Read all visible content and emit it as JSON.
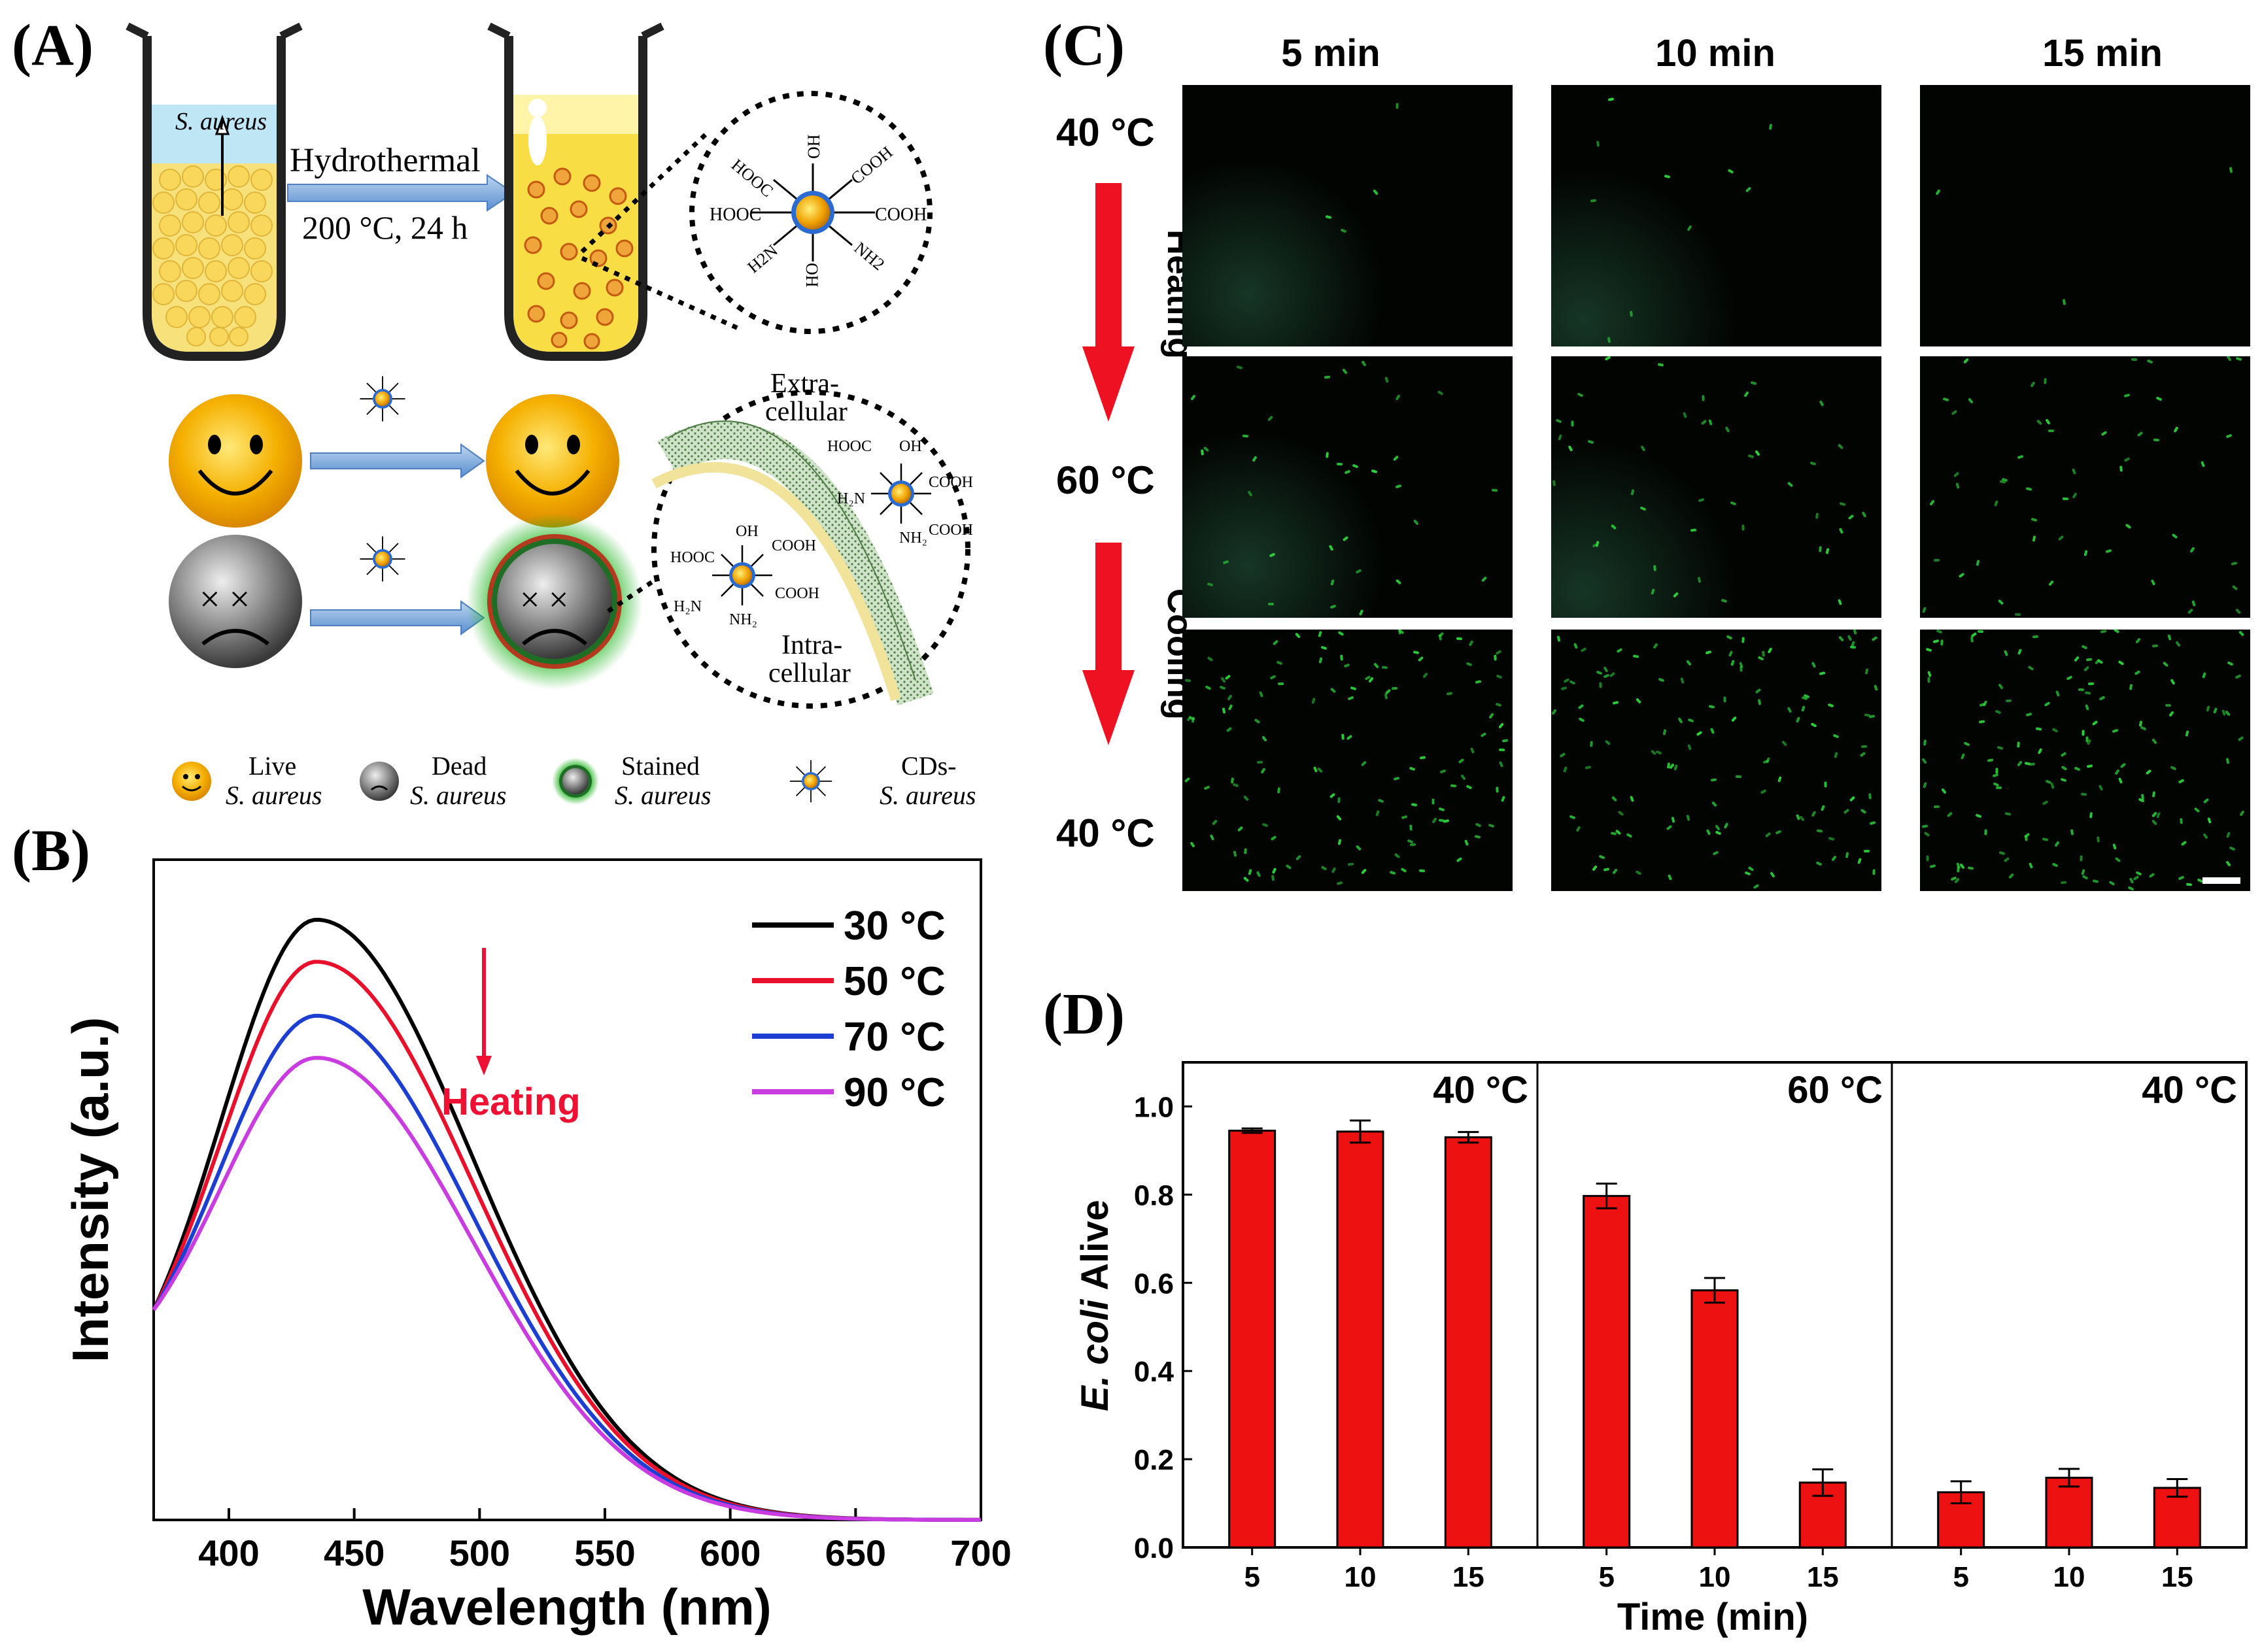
{
  "panelA": {
    "label": "(A)",
    "bacteria_label": "S. aureus",
    "process_line1": "Hydrothermal",
    "process_line2": "200 °C, 24 h",
    "carboxyl": "COOH",
    "carboxyl_left": "HOOC",
    "hydroxyl": "OH",
    "amine": "H2N",
    "amine_right": "NH2",
    "extracellular": "Extra-",
    "extracellular2": "cellular",
    "intracellular": "Intra-",
    "intracellular2": "cellular",
    "legend": [
      {
        "line1": "Live",
        "line2": "S. aureus"
      },
      {
        "line1": "Dead",
        "line2": "S. aureus"
      },
      {
        "line1": "Stained",
        "line2": "S. aureus"
      },
      {
        "line1": "CDs-",
        "line2": "S. aureus"
      }
    ]
  },
  "panelB": {
    "label": "(B)",
    "heating_label": "Heating",
    "colors": {
      "30": "#000000",
      "50": "#e8102a",
      "70": "#1c3fd1",
      "90": "#c83ce0"
    },
    "chart_data": {
      "type": "line",
      "title": "",
      "xlabel": "Wavelength (nm)",
      "ylabel": "Intensity (a.u.)",
      "xlim": [
        370,
        700
      ],
      "ylim": [
        0,
        1.1
      ],
      "x_ticks": [
        400,
        450,
        500,
        550,
        600,
        650,
        700
      ],
      "peak_wavelength": 435,
      "series": [
        {
          "name": "30 °C",
          "peak": 1.0
        },
        {
          "name": "50 °C",
          "peak": 0.93
        },
        {
          "name": "70 °C",
          "peak": 0.84
        },
        {
          "name": "90 °C",
          "peak": 0.77
        }
      ]
    }
  },
  "panelC": {
    "label": "(C)",
    "columns": [
      "5 min",
      "10 min",
      "15 min"
    ],
    "rows": [
      "40 °C",
      "60 °C",
      "40 °C"
    ],
    "heating": "Heating",
    "cooling": "Cooling",
    "density": [
      [
        4,
        10,
        3
      ],
      [
        35,
        45,
        55
      ],
      [
        130,
        130,
        160
      ]
    ]
  },
  "panelD": {
    "label": "(D)",
    "chart_data": {
      "type": "bar",
      "title": "",
      "xlabel": "Time (min)",
      "ylabel_italic": "E. coli",
      "ylabel_rest": " Alive",
      "ylim": [
        0,
        1.1
      ],
      "y_ticks": [
        "0.0",
        "0.2",
        "0.4",
        "0.6",
        "0.8",
        "1.0"
      ],
      "bar_color": "#ee1111",
      "groups": [
        {
          "name": "40 °C",
          "categories": [
            "5",
            "10",
            "15"
          ],
          "values": [
            0.945,
            0.943,
            0.93
          ],
          "errors": [
            0.005,
            0.025,
            0.012
          ]
        },
        {
          "name": "60 °C",
          "categories": [
            "5",
            "10",
            "15"
          ],
          "values": [
            0.797,
            0.583,
            0.147
          ],
          "errors": [
            0.028,
            0.028,
            0.03
          ]
        },
        {
          "name": "40 °C",
          "categories": [
            "5",
            "10",
            "15"
          ],
          "values": [
            0.125,
            0.158,
            0.135
          ],
          "errors": [
            0.025,
            0.02,
            0.02
          ]
        }
      ]
    }
  }
}
